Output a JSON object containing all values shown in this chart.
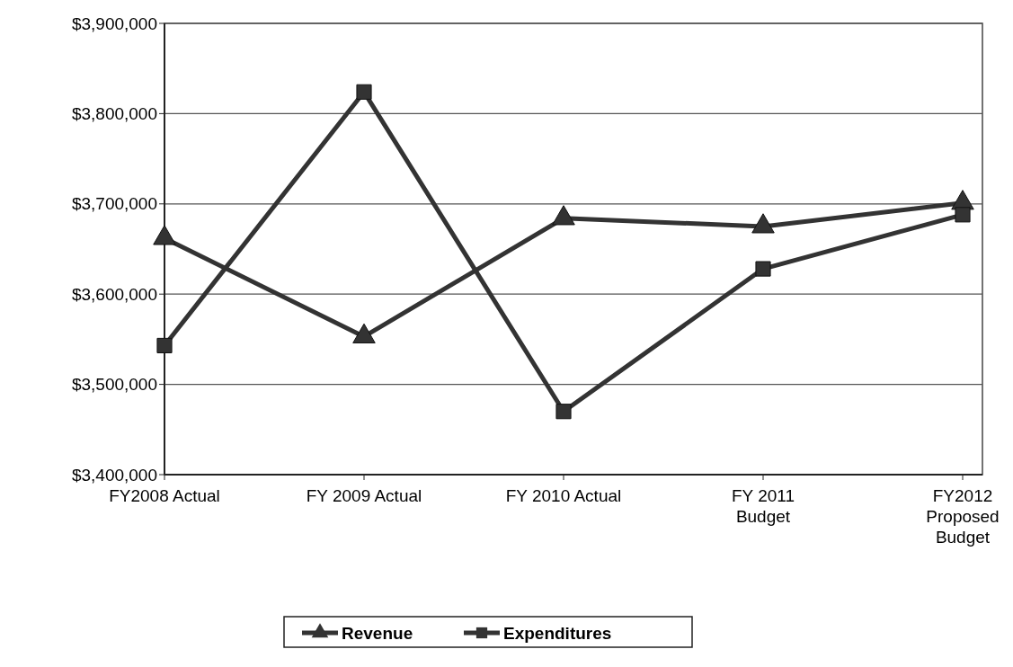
{
  "chart_data": {
    "type": "line",
    "categories": [
      "FY2008 Actual",
      "FY 2009 Actual",
      "FY 2010 Actual",
      "FY 2011\nBudget",
      "FY2012\nProposed\nBudget"
    ],
    "series": [
      {
        "name": "Revenue",
        "color": "#333333",
        "marker": "triangle",
        "values": [
          3662000,
          3553000,
          3684000,
          3675000,
          3701000
        ]
      },
      {
        "name": "Expenditures",
        "color": "#333333",
        "marker": "square",
        "values": [
          3543000,
          3824000,
          3470000,
          3628000,
          3688000
        ]
      }
    ],
    "ylim": [
      3400000,
      3900000
    ],
    "yticks": [
      {
        "value": 3400000,
        "label": "$3,400,000"
      },
      {
        "value": 3500000,
        "label": "$3,500,000"
      },
      {
        "value": 3600000,
        "label": "$3,600,000"
      },
      {
        "value": 3700000,
        "label": "$3,700,000"
      },
      {
        "value": 3800000,
        "label": "$3,800,000"
      },
      {
        "value": 3900000,
        "label": "$3,900,000"
      }
    ],
    "grid": "y",
    "legend": "bottom",
    "line_style": "solid"
  }
}
